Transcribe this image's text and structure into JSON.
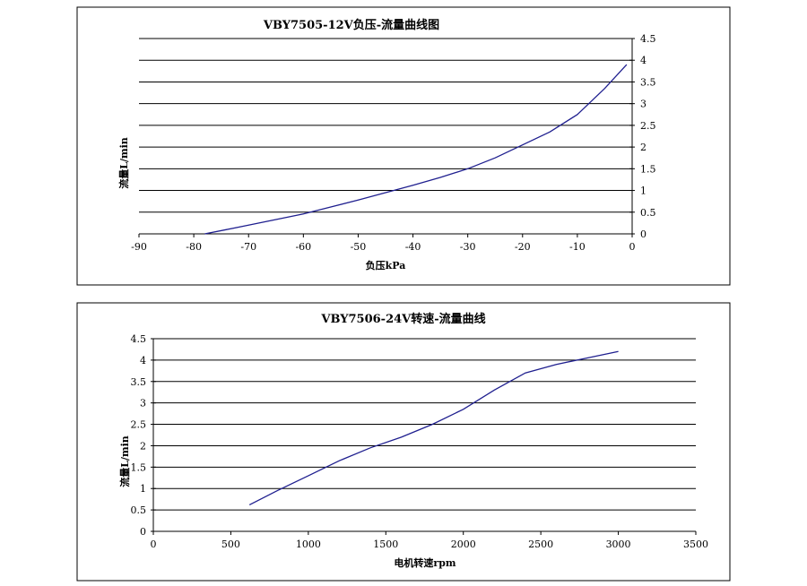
{
  "chart_data": [
    {
      "type": "line",
      "title": "VBY7505-12V负压-流量曲线图",
      "xlabel": "负压kPa",
      "ylabel": "流量L/min",
      "xlim": [
        -90,
        0
      ],
      "ylim": [
        0,
        4.5
      ],
      "x_ticks": [
        "-90",
        "-80",
        "-70",
        "-60",
        "-50",
        "-40",
        "-30",
        "-20",
        "-10",
        "0"
      ],
      "y_ticks": [
        "0",
        "0.5",
        "1",
        "1.5",
        "2",
        "2.5",
        "3",
        "3.5",
        "4",
        "4.5"
      ],
      "y_axis_side": "right",
      "grid": "horizontal",
      "series": [
        {
          "x": [
            -78,
            -74,
            -70,
            -65,
            -60,
            -55,
            -50,
            -45,
            -40,
            -35,
            -30,
            -25,
            -20,
            -15,
            -10,
            -5,
            -1
          ],
          "y": [
            0.0,
            0.1,
            0.2,
            0.33,
            0.46,
            0.62,
            0.78,
            0.95,
            1.12,
            1.3,
            1.5,
            1.75,
            2.05,
            2.35,
            2.75,
            3.35,
            3.9
          ]
        }
      ],
      "color": "#1f1f8f"
    },
    {
      "type": "line",
      "title": "VBY7506-24V转速-流量曲线",
      "xlabel": "电机转速rpm",
      "ylabel": "流量L/min",
      "xlim": [
        0,
        3500
      ],
      "ylim": [
        0,
        4.5
      ],
      "x_ticks": [
        "0",
        "500",
        "1000",
        "1500",
        "2000",
        "2500",
        "3000",
        "3500"
      ],
      "y_ticks": [
        "0",
        "0.5",
        "1",
        "1.5",
        "2",
        "2.5",
        "3",
        "3.5",
        "4",
        "4.5"
      ],
      "y_axis_side": "left",
      "grid": "horizontal",
      "series": [
        {
          "x": [
            620,
            800,
            1000,
            1200,
            1400,
            1600,
            1800,
            2000,
            2200,
            2400,
            2600,
            2800,
            3000
          ],
          "y": [
            0.62,
            0.95,
            1.3,
            1.65,
            1.95,
            2.2,
            2.5,
            2.85,
            3.3,
            3.7,
            3.9,
            4.05,
            4.2
          ]
        }
      ],
      "color": "#1f1f8f"
    }
  ]
}
